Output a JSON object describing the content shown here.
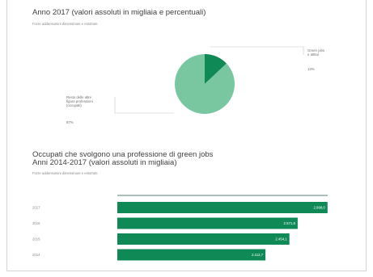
{
  "pie_chart": {
    "title": "Anno 2017 (valori assoluti in migliaia e percentuali)",
    "source_note": "Forze addensomini dimensinare e estortute"
  },
  "bar_chart": {
    "title_line1": "Occupati che svolgono una professione di green jobs",
    "title_line2": "Anni 2014-2017 (valori assoluti in migliaia)",
    "source_note": "Forze addensomini dimensinare e estortute"
  },
  "colors": {
    "dark_green": "#0f8a57",
    "light_green": "#79c7a0",
    "axis": "#1e5a3f"
  },
  "chart_data": [
    {
      "type": "pie",
      "slices": [
        {
          "label": "Green jobs e attitui",
          "value_label": "13%",
          "value": 13,
          "color": "#0f8a57"
        },
        {
          "label": "Resto delle altre figure professioni (occupati)",
          "value_label": "87%",
          "value": 87,
          "color": "#79c7a0"
        }
      ]
    },
    {
      "type": "bar",
      "orientation": "horizontal",
      "categories": [
        "2017",
        "2016",
        "2015",
        "2014"
      ],
      "values": [
        2998.0,
        2571.8,
        2454.1,
        2112.7
      ],
      "value_labels": [
        "2.998,0",
        "2.571,8",
        "2.454,1",
        "2.112,7"
      ],
      "xlim": [
        0,
        3000
      ],
      "color": "#0f8a57",
      "grid": false
    }
  ]
}
